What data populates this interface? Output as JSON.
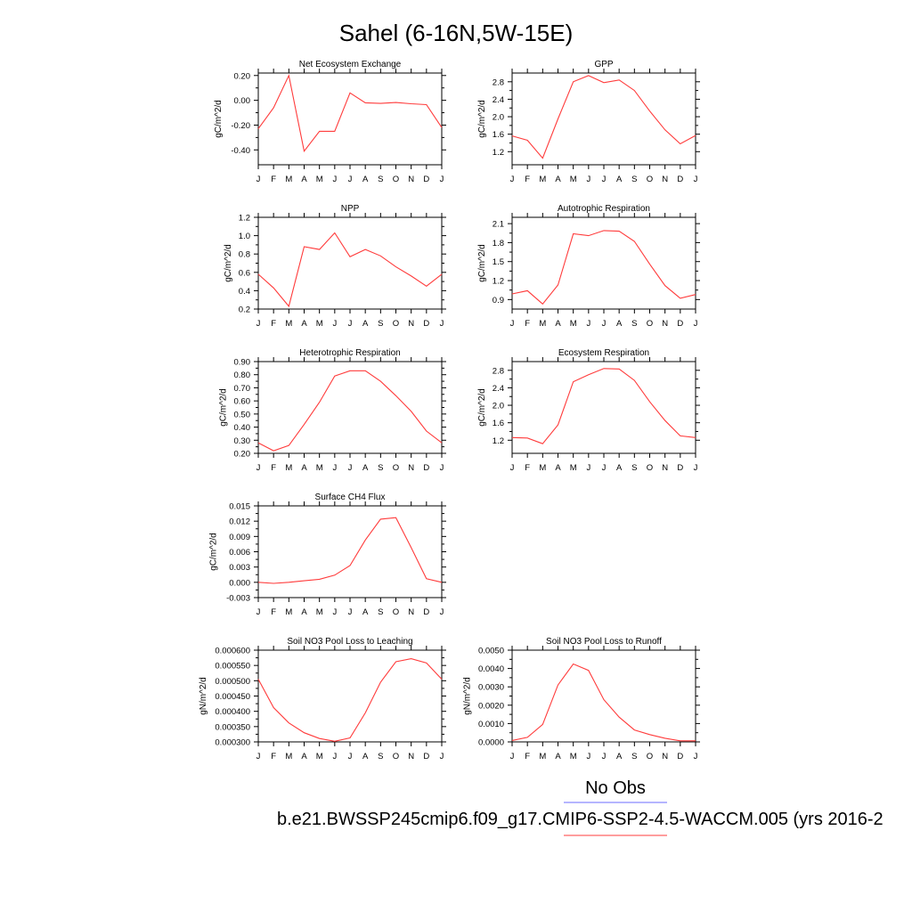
{
  "title": "Sahel (6-16N,5W-15E)",
  "months": [
    "J",
    "F",
    "M",
    "A",
    "M",
    "J",
    "J",
    "A",
    "S",
    "O",
    "N",
    "D",
    "J"
  ],
  "legend": {
    "obs_label": "No Obs",
    "obs_color": "#6b6bff",
    "model_color": "#ff3b3b",
    "model_label": "b.e21.BWSSP245cmip6.f09_g17.CMIP6-SSP2-4.5-WACCM.005 (yrs 2016-2"
  },
  "chart_data": [
    {
      "type": "line",
      "title": "Net Ecosystem Exchange",
      "ylabel": "gC/m^2/d",
      "ylim": [
        -0.52,
        0.22
      ],
      "yticks": [
        -0.4,
        -0.2,
        0.0,
        0.2
      ],
      "ytick_labels": [
        "-0.40",
        "-0.20",
        "0.00",
        "0.20"
      ],
      "values": [
        -0.23,
        -0.06,
        0.2,
        -0.41,
        -0.25,
        -0.25,
        0.06,
        -0.02,
        -0.025,
        -0.018,
        -0.028,
        -0.035,
        -0.22
      ],
      "color": "#ff3b3b",
      "grid": false
    },
    {
      "type": "line",
      "title": "GPP",
      "ylabel": "gC/m^2/d",
      "ylim": [
        0.9,
        3.0
      ],
      "yticks": [
        1.2,
        1.6,
        2.0,
        2.4,
        2.8
      ],
      "ytick_labels": [
        "1.2",
        "1.6",
        "2.0",
        "2.4",
        "2.8"
      ],
      "values": [
        1.56,
        1.46,
        1.05,
        1.95,
        2.8,
        2.94,
        2.78,
        2.84,
        2.6,
        2.13,
        1.7,
        1.38,
        1.57
      ],
      "color": "#ff3b3b",
      "grid": false
    },
    {
      "type": "line",
      "title": "NPP",
      "ylabel": "gC/m^2/d",
      "ylim": [
        0.2,
        1.2
      ],
      "yticks": [
        0.2,
        0.4,
        0.6,
        0.8,
        1.0,
        1.2
      ],
      "ytick_labels": [
        "0.2",
        "0.4",
        "0.6",
        "0.8",
        "1.0",
        "1.2"
      ],
      "values": [
        0.58,
        0.43,
        0.23,
        0.88,
        0.85,
        1.03,
        0.77,
        0.85,
        0.78,
        0.66,
        0.56,
        0.45,
        0.58
      ],
      "color": "#ff3b3b",
      "grid": false
    },
    {
      "type": "line",
      "title": "Autotrophic Respiration",
      "ylabel": "gC/m^2/d",
      "ylim": [
        0.75,
        2.2
      ],
      "yticks": [
        0.9,
        1.2,
        1.5,
        1.8,
        2.1
      ],
      "ytick_labels": [
        "0.9",
        "1.2",
        "1.5",
        "1.8",
        "2.1"
      ],
      "values": [
        0.99,
        1.04,
        0.83,
        1.13,
        1.94,
        1.91,
        1.99,
        1.98,
        1.82,
        1.46,
        1.12,
        0.92,
        0.98
      ],
      "color": "#ff3b3b",
      "grid": false
    },
    {
      "type": "line",
      "title": "Heterotrophic Respiration",
      "ylabel": "gC/m^2/d",
      "ylim": [
        0.2,
        0.9
      ],
      "yticks": [
        0.2,
        0.3,
        0.4,
        0.5,
        0.6,
        0.7,
        0.8,
        0.9
      ],
      "ytick_labels": [
        "0.20",
        "0.30",
        "0.40",
        "0.50",
        "0.60",
        "0.70",
        "0.80",
        "0.90"
      ],
      "values": [
        0.28,
        0.22,
        0.26,
        0.42,
        0.59,
        0.79,
        0.83,
        0.83,
        0.75,
        0.64,
        0.52,
        0.37,
        0.28
      ],
      "color": "#ff3b3b",
      "grid": false
    },
    {
      "type": "line",
      "title": "Ecosystem Respiration",
      "ylabel": "gC/m^2/d",
      "ylim": [
        0.9,
        3.0
      ],
      "yticks": [
        1.2,
        1.6,
        2.0,
        2.4,
        2.8
      ],
      "ytick_labels": [
        "1.2",
        "1.6",
        "2.0",
        "2.4",
        "2.8"
      ],
      "values": [
        1.26,
        1.25,
        1.12,
        1.55,
        2.54,
        2.7,
        2.84,
        2.83,
        2.57,
        2.08,
        1.65,
        1.3,
        1.26
      ],
      "color": "#ff3b3b",
      "grid": false
    },
    {
      "type": "line",
      "title": "Surface CH4 Flux",
      "ylabel": "gC/m^2/d",
      "ylim": [
        -0.003,
        0.015
      ],
      "yticks": [
        -0.003,
        0.0,
        0.003,
        0.006,
        0.009,
        0.012,
        0.015
      ],
      "ytick_labels": [
        "-0.003",
        "0.000",
        "0.003",
        "0.006",
        "0.009",
        "0.012",
        "0.015"
      ],
      "values": [
        0.0,
        -0.0002,
        0.0,
        0.0003,
        0.0006,
        0.0014,
        0.0033,
        0.0083,
        0.0124,
        0.0127,
        0.0068,
        0.0007,
        0.0
      ],
      "color": "#ff3b3b",
      "grid": false
    },
    null,
    {
      "type": "line",
      "title": "Soil NO3 Pool Loss to Leaching",
      "ylabel": "gN/m^2/d",
      "ylim": [
        0.0003,
        0.0006
      ],
      "yticks": [
        0.0003,
        0.00035,
        0.0004,
        0.00045,
        0.0005,
        0.00055,
        0.0006
      ],
      "ytick_labels": [
        "0.000300",
        "0.000350",
        "0.000400",
        "0.000450",
        "0.000500",
        "0.000550",
        "0.000600"
      ],
      "values": [
        0.000505,
        0.000412,
        0.000362,
        0.00033,
        0.000311,
        0.000302,
        0.000313,
        0.000395,
        0.000495,
        0.000562,
        0.000572,
        0.000558,
        0.000505
      ],
      "color": "#ff3b3b",
      "grid": false
    },
    {
      "type": "line",
      "title": "Soil NO3 Pool Loss to Runoff",
      "ylabel": "gN/m^2/d",
      "ylim": [
        0.0,
        0.005
      ],
      "yticks": [
        0.0,
        0.001,
        0.002,
        0.003,
        0.004,
        0.005
      ],
      "ytick_labels": [
        "0.0000",
        "0.0010",
        "0.0020",
        "0.0030",
        "0.0040",
        "0.0050"
      ],
      "values": [
        8e-05,
        0.00025,
        0.00095,
        0.0031,
        0.00425,
        0.0039,
        0.0023,
        0.00135,
        0.00065,
        0.0004,
        0.0002,
        6e-05,
        6e-05
      ],
      "color": "#ff3b3b",
      "grid": false
    }
  ]
}
